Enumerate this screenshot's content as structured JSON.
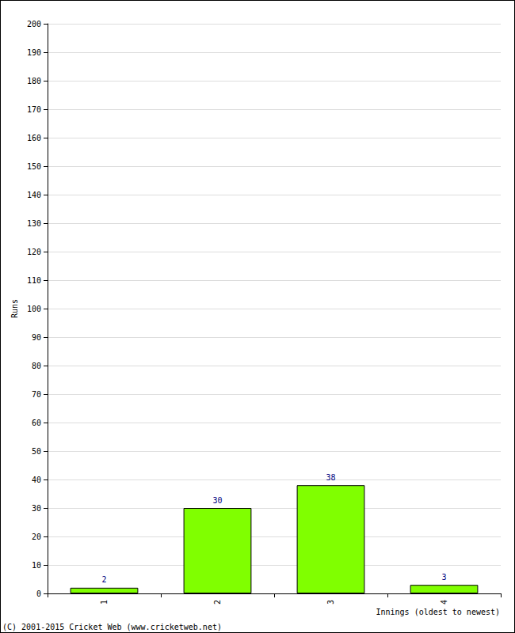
{
  "chart_data": {
    "type": "bar",
    "categories": [
      "1",
      "2",
      "3",
      "4"
    ],
    "values": [
      2,
      30,
      38,
      3
    ],
    "color": "#80ff00",
    "x_label": "Innings (oldest to newest)",
    "y_label": "Runs",
    "annotation": "(C) 2001-2015 Cricket Web (www.cricketweb.net)",
    "ylim": [
      0,
      200
    ],
    "yticks": [
      0,
      10,
      20,
      30,
      40,
      50,
      60,
      70,
      80,
      90,
      100,
      110,
      120,
      130,
      140,
      150,
      160,
      170,
      180,
      190,
      200
    ],
    "grid": true,
    "data_labels": true
  }
}
